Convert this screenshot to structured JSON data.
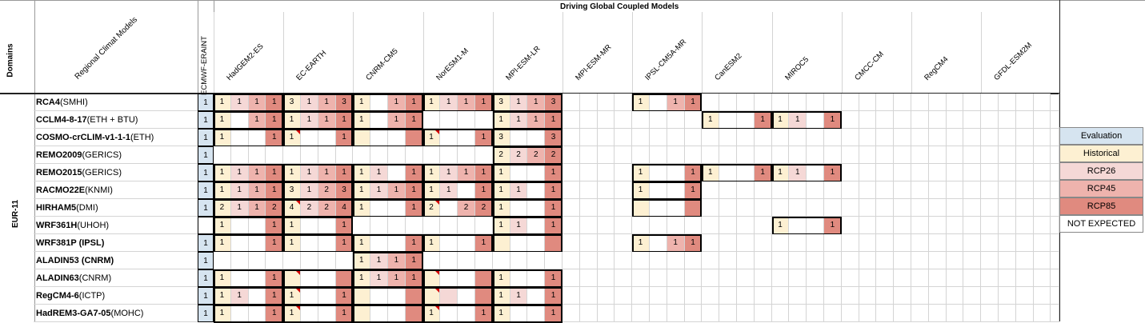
{
  "header": {
    "driving_title": "Driving Global Coupled Models",
    "domains_label": "Domains",
    "rcm_label": "Regional Climat Models",
    "domain_value": "EUR-11"
  },
  "gcms": [
    "ECMWF-ERAINT",
    "HadGEM2-ES",
    "EC-EARTH",
    "CNRM-CM5",
    "NorESM1-M",
    "MPI-ESM-LR",
    "MPI-ESM-MR",
    "IPSL-CM5A-MR",
    "CanESM2",
    "MIROC5",
    "CMCC-CM",
    "RegCM4",
    "GFDL-ESM2M"
  ],
  "rcms": [
    {
      "bold": "RCA4",
      "rest": " (SMHI)"
    },
    {
      "bold": "CCLM4-8-17",
      "rest": " (ETH + BTU)"
    },
    {
      "bold": "COSMO-crCLIM-v1-1-1",
      "rest": " (ETH)"
    },
    {
      "bold": "REMO2009",
      "rest": " (GERICS)"
    },
    {
      "bold": "REMO2015",
      "rest": " (GERICS)"
    },
    {
      "bold": "RACMO22E",
      "rest": " (KNMI)"
    },
    {
      "bold": "HIRHAM5",
      "rest": " (DMI)"
    },
    {
      "bold": "WRF361H",
      "rest": " (UHOH)"
    },
    {
      "bold": "WRF381P (IPSL)",
      "rest": ""
    },
    {
      "bold": "ALADIN53 (CNRM)",
      "rest": ""
    },
    {
      "bold": "ALADIN63",
      "rest": " (CNRM)"
    },
    {
      "bold": "RegCM4-6",
      "rest": " (ICTP)"
    },
    {
      "bold": "HadREM3-GA7-05",
      "rest": " (MOHC)"
    }
  ],
  "colors": {
    "evaluation": "#d6e4f0",
    "historical": "#fdf0d2",
    "rcp26": "#f5d8d6",
    "rcp45": "#eeb3ad",
    "rcp85": "#e08a7f",
    "grid": "#d4d4d4",
    "flag": "#d40000"
  },
  "legend": [
    "Evaluation",
    "Historical",
    "RCP26",
    "RCP45",
    "RCP85",
    "NOT EXPECTED"
  ],
  "grid": {
    "note": "values per row: eval, then per GCM [hist, rcp26, rcp45, rcp85]; '' = empty, 'c' = colored no number",
    "rows": [
      [
        "1",
        [
          "1",
          "1",
          "1",
          "1"
        ],
        [
          "3",
          "1",
          "1",
          "3"
        ],
        [
          "1",
          "",
          "1",
          "1"
        ],
        [
          "1",
          "1",
          "1",
          "1"
        ],
        [
          "3",
          "1",
          "1",
          "3"
        ],
        [
          "",
          "",
          "",
          ""
        ],
        [
          "1",
          "",
          "1",
          "1"
        ],
        [
          "",
          "",
          "",
          ""
        ],
        [
          "",
          "",
          "",
          ""
        ],
        [
          "",
          "",
          "",
          ""
        ],
        [
          "",
          "",
          "",
          ""
        ],
        [
          "",
          "",
          "",
          ""
        ]
      ],
      [
        "1",
        [
          "1",
          "",
          "1",
          "1"
        ],
        [
          "1",
          "1",
          "1",
          "1"
        ],
        [
          "1",
          "",
          "1",
          "1"
        ],
        [
          "",
          "",
          "",
          ""
        ],
        [
          "1",
          "1",
          "1",
          "1"
        ],
        [
          "",
          "",
          "",
          ""
        ],
        [
          "",
          "",
          "",
          ""
        ],
        [
          "1",
          "",
          "",
          "1"
        ],
        [
          "1",
          "1",
          "",
          "1"
        ],
        [
          "",
          "",
          "",
          ""
        ],
        [
          "",
          "",
          "",
          ""
        ],
        [
          "",
          "",
          "",
          ""
        ]
      ],
      [
        "1",
        [
          "1",
          "",
          "",
          "1"
        ],
        [
          "1",
          "",
          "",
          "1"
        ],
        [
          "c",
          "",
          "",
          "c"
        ],
        [
          "1",
          "",
          "",
          "1"
        ],
        [
          "3",
          "",
          "",
          "3"
        ],
        [
          "",
          "",
          "",
          ""
        ],
        [
          "",
          "",
          "",
          ""
        ],
        [
          "",
          "",
          "",
          ""
        ],
        [
          "",
          "",
          "",
          ""
        ],
        [
          "",
          "",
          "",
          ""
        ],
        [
          "",
          "",
          "",
          ""
        ],
        [
          "",
          "",
          "",
          ""
        ]
      ],
      [
        "1",
        [
          "",
          "",
          "",
          ""
        ],
        [
          "",
          "",
          "",
          ""
        ],
        [
          "",
          "",
          "",
          ""
        ],
        [
          "",
          "",
          "",
          ""
        ],
        [
          "2",
          "2",
          "2",
          "2"
        ],
        [
          "",
          "",
          "",
          ""
        ],
        [
          "",
          "",
          "",
          ""
        ],
        [
          "",
          "",
          "",
          ""
        ],
        [
          "",
          "",
          "",
          ""
        ],
        [
          "",
          "",
          "",
          ""
        ],
        [
          "",
          "",
          "",
          ""
        ],
        [
          "",
          "",
          "",
          ""
        ]
      ],
      [
        "1",
        [
          "1",
          "1",
          "1",
          "1"
        ],
        [
          "1",
          "1",
          "1",
          "1"
        ],
        [
          "1",
          "1",
          "",
          "1"
        ],
        [
          "1",
          "1",
          "1",
          "1"
        ],
        [
          "1",
          "",
          "",
          "1"
        ],
        [
          "",
          "",
          "",
          ""
        ],
        [
          "1",
          "",
          "",
          "1"
        ],
        [
          "1",
          "",
          "",
          "1"
        ],
        [
          "1",
          "1",
          "",
          "1"
        ],
        [
          "",
          "",
          "",
          ""
        ],
        [
          "",
          "",
          "",
          ""
        ],
        [
          "",
          "",
          "",
          ""
        ]
      ],
      [
        "1",
        [
          "1",
          "1",
          "1",
          "1"
        ],
        [
          "3",
          "1",
          "2",
          "3"
        ],
        [
          "1",
          "1",
          "1",
          "1"
        ],
        [
          "1",
          "1",
          "",
          "1"
        ],
        [
          "1",
          "1",
          "",
          "1"
        ],
        [
          "",
          "",
          "",
          ""
        ],
        [
          "1",
          "",
          "",
          "1"
        ],
        [
          "",
          "",
          "",
          ""
        ],
        [
          "",
          "",
          "",
          ""
        ],
        [
          "",
          "",
          "",
          ""
        ],
        [
          "",
          "",
          "",
          ""
        ],
        [
          "",
          "",
          "",
          ""
        ]
      ],
      [
        "1",
        [
          "2",
          "1",
          "1",
          "2"
        ],
        [
          "4",
          "2",
          "2",
          "4"
        ],
        [
          "1",
          "",
          "",
          "1"
        ],
        [
          "2",
          "",
          "2",
          "2"
        ],
        [
          "1",
          "",
          "",
          "1"
        ],
        [
          "",
          "",
          "",
          ""
        ],
        [
          "c",
          "",
          "",
          "c"
        ],
        [
          "",
          "",
          "",
          ""
        ],
        [
          "",
          "",
          "",
          ""
        ],
        [
          "",
          "",
          "",
          ""
        ],
        [
          "",
          "",
          "",
          ""
        ],
        [
          "",
          "",
          "",
          ""
        ]
      ],
      [
        "",
        [
          "1",
          "",
          "",
          "1"
        ],
        [
          "1",
          "",
          "",
          "1"
        ],
        [
          "",
          "",
          "",
          ""
        ],
        [
          "",
          "",
          "",
          ""
        ],
        [
          "1",
          "1",
          "",
          "1"
        ],
        [
          "",
          "",
          "",
          ""
        ],
        [
          "",
          "",
          "",
          ""
        ],
        [
          "",
          "",
          "",
          ""
        ],
        [
          "1",
          "",
          "",
          "1"
        ],
        [
          "",
          "",
          "",
          ""
        ],
        [
          "",
          "",
          "",
          ""
        ],
        [
          "",
          "",
          "",
          ""
        ]
      ],
      [
        "1",
        [
          "1",
          "",
          "",
          "1"
        ],
        [
          "1",
          "",
          "",
          "1"
        ],
        [
          "1",
          "",
          "",
          "1"
        ],
        [
          "1",
          "",
          "",
          "1"
        ],
        [
          "c",
          "",
          "",
          "c"
        ],
        [
          "",
          "",
          "",
          ""
        ],
        [
          "1",
          "",
          "1",
          "1"
        ],
        [
          "",
          "",
          "",
          ""
        ],
        [
          "",
          "",
          "",
          ""
        ],
        [
          "",
          "",
          "",
          ""
        ],
        [
          "",
          "",
          "",
          ""
        ],
        [
          "",
          "",
          "",
          ""
        ]
      ],
      [
        "1",
        [
          "",
          "",
          "",
          ""
        ],
        [
          "",
          "",
          "",
          ""
        ],
        [
          "1",
          "1",
          "1",
          "1"
        ],
        [
          "",
          "",
          "",
          ""
        ],
        [
          "",
          "",
          "",
          ""
        ],
        [
          "",
          "",
          "",
          ""
        ],
        [
          "",
          "",
          "",
          ""
        ],
        [
          "",
          "",
          "",
          ""
        ],
        [
          "",
          "",
          "",
          ""
        ],
        [
          "",
          "",
          "",
          ""
        ],
        [
          "",
          "",
          "",
          ""
        ],
        [
          "",
          "",
          "",
          ""
        ]
      ],
      [
        "1",
        [
          "1",
          "",
          "",
          "1"
        ],
        [
          "c",
          "",
          "",
          "c"
        ],
        [
          "1",
          "1",
          "1",
          "1"
        ],
        [
          "c",
          "",
          "",
          "c"
        ],
        [
          "1",
          "",
          "",
          "1"
        ],
        [
          "",
          "",
          "",
          ""
        ],
        [
          "",
          "",
          "",
          ""
        ],
        [
          "",
          "",
          "",
          ""
        ],
        [
          "",
          "",
          "",
          ""
        ],
        [
          "",
          "",
          "",
          ""
        ],
        [
          "",
          "",
          "",
          ""
        ],
        [
          "",
          "",
          "",
          ""
        ]
      ],
      [
        "1",
        [
          "1",
          "1",
          "",
          "1"
        ],
        [
          "1",
          "",
          "",
          "1"
        ],
        [
          "c",
          "",
          "",
          "c"
        ],
        [
          "c",
          "c",
          "",
          "c"
        ],
        [
          "1",
          "1",
          "",
          "1"
        ],
        [
          "",
          "",
          "",
          ""
        ],
        [
          "",
          "",
          "",
          ""
        ],
        [
          "",
          "",
          "",
          ""
        ],
        [
          "",
          "",
          "",
          ""
        ],
        [
          "",
          "",
          "",
          ""
        ],
        [
          "",
          "",
          "",
          ""
        ],
        [
          "",
          "",
          "",
          ""
        ]
      ],
      [
        "1",
        [
          "1",
          "",
          "",
          "1"
        ],
        [
          "1",
          "",
          "",
          "1"
        ],
        [
          "c",
          "",
          "",
          "c"
        ],
        [
          "1",
          "",
          "",
          "1"
        ],
        [
          "1",
          "",
          "",
          "1"
        ],
        [
          "",
          "",
          "",
          ""
        ],
        [
          "",
          "",
          "",
          ""
        ],
        [
          "",
          "",
          "",
          ""
        ],
        [
          "",
          "",
          "",
          ""
        ],
        [
          "",
          "",
          "",
          ""
        ],
        [
          "",
          "",
          "",
          ""
        ],
        [
          "",
          "",
          "",
          ""
        ]
      ]
    ]
  }
}
